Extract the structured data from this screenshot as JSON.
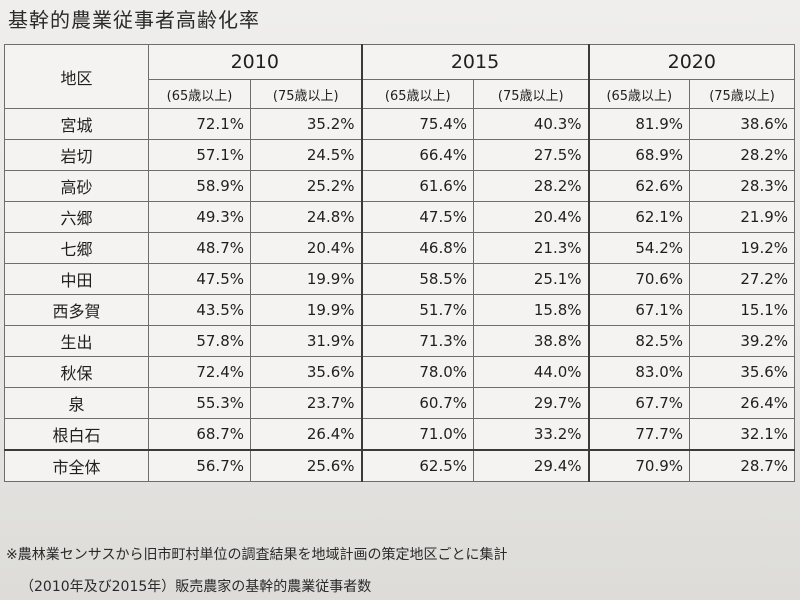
{
  "title": "基幹的農業従事者高齢化率",
  "table": {
    "region_header": "地区",
    "years": [
      "2010",
      "2015",
      "2020"
    ],
    "sub_headers": [
      "(65歳以上)",
      "(75歳以上)",
      "(65歳以上)",
      "(75歳以上)",
      "(65歳以上)",
      "(75歳以上)"
    ],
    "rows": [
      {
        "region": "宮城",
        "v": [
          "72.1%",
          "35.2%",
          "75.4%",
          "40.3%",
          "81.9%",
          "38.6%"
        ]
      },
      {
        "region": "岩切",
        "v": [
          "57.1%",
          "24.5%",
          "66.4%",
          "27.5%",
          "68.9%",
          "28.2%"
        ]
      },
      {
        "region": "高砂",
        "v": [
          "58.9%",
          "25.2%",
          "61.6%",
          "28.2%",
          "62.6%",
          "28.3%"
        ]
      },
      {
        "region": "六郷",
        "v": [
          "49.3%",
          "24.8%",
          "47.5%",
          "20.4%",
          "62.1%",
          "21.9%"
        ]
      },
      {
        "region": "七郷",
        "v": [
          "48.7%",
          "20.4%",
          "46.8%",
          "21.3%",
          "54.2%",
          "19.2%"
        ]
      },
      {
        "region": "中田",
        "v": [
          "47.5%",
          "19.9%",
          "58.5%",
          "25.1%",
          "70.6%",
          "27.2%"
        ]
      },
      {
        "region": "西多賀",
        "v": [
          "43.5%",
          "19.9%",
          "51.7%",
          "15.8%",
          "67.1%",
          "15.1%"
        ]
      },
      {
        "region": "生出",
        "v": [
          "57.8%",
          "31.9%",
          "71.3%",
          "38.8%",
          "82.5%",
          "39.2%"
        ]
      },
      {
        "region": "秋保",
        "v": [
          "72.4%",
          "35.6%",
          "78.0%",
          "44.0%",
          "83.0%",
          "35.6%"
        ]
      },
      {
        "region": "泉",
        "v": [
          "55.3%",
          "23.7%",
          "60.7%",
          "29.7%",
          "67.7%",
          "26.4%"
        ]
      },
      {
        "region": "根白石",
        "v": [
          "68.7%",
          "26.4%",
          "71.0%",
          "33.2%",
          "77.7%",
          "32.1%"
        ]
      },
      {
        "region": "市全体",
        "v": [
          "56.7%",
          "25.6%",
          "62.5%",
          "29.4%",
          "70.9%",
          "28.7%"
        ]
      }
    ]
  },
  "footnotes": [
    "※農林業センサスから旧市町村単位の調査結果を地域計画の策定地区ごとに集計",
    "（2010年及び2015年）販売農家の基幹的農業従事者数"
  ]
}
